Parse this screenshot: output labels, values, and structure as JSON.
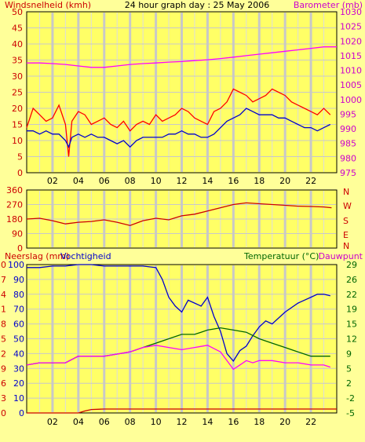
{
  "chart_data": [
    {
      "type": "line",
      "title": "24 hour graph day : 25 May 2006",
      "y_left_label": "Windsnelheid (kmh)",
      "y_right_label": "Barometer (mb)",
      "x_ticks": [
        "02",
        "04",
        "06",
        "08",
        "10",
        "12",
        "14",
        "16",
        "18",
        "20",
        "22"
      ],
      "x_range": [
        0,
        24
      ],
      "y_left_range": [
        0,
        50
      ],
      "y_left_ticks": [
        "0",
        "5",
        "10",
        "15",
        "20",
        "25",
        "30",
        "35",
        "40",
        "45",
        "50"
      ],
      "y_right_range": [
        975,
        1030
      ],
      "y_right_ticks": [
        "975",
        "980",
        "985",
        "990",
        "995",
        "1000",
        "1005",
        "1010",
        "1015",
        "1020",
        "1025",
        "1030"
      ],
      "grid": true,
      "series": [
        {
          "axis": "left",
          "color": "#ff0000",
          "x": [
            0,
            0.5,
            1,
            1.5,
            2,
            2.5,
            3,
            3.25,
            3.5,
            4,
            4.5,
            5,
            5.5,
            6,
            6.5,
            7,
            7.5,
            8,
            8.5,
            9,
            9.5,
            10,
            10.5,
            11,
            11.5,
            12,
            12.5,
            13,
            13.5,
            14,
            14.5,
            15,
            15.5,
            16,
            16.5,
            17,
            17.5,
            18,
            18.5,
            19,
            19.5,
            20,
            20.5,
            21,
            21.5,
            22,
            22.5,
            23,
            23.5
          ],
          "y": [
            14,
            20,
            18,
            16,
            17,
            21,
            15,
            5,
            16,
            19,
            18,
            15,
            16,
            17,
            15,
            14,
            16,
            13,
            15,
            16,
            15,
            18,
            16,
            17,
            18,
            20,
            19,
            17,
            16,
            15,
            19,
            20,
            22,
            26,
            25,
            24,
            22,
            23,
            24,
            26,
            25,
            24,
            22,
            21,
            20,
            19,
            18,
            20,
            18
          ]
        },
        {
          "axis": "left",
          "color": "#0000cc",
          "x": [
            0,
            0.5,
            1,
            1.5,
            2,
            2.5,
            3,
            3.25,
            3.5,
            4,
            4.5,
            5,
            5.5,
            6,
            6.5,
            7,
            7.5,
            8,
            8.5,
            9,
            9.5,
            10,
            10.5,
            11,
            11.5,
            12,
            12.5,
            13,
            13.5,
            14,
            14.5,
            15,
            15.5,
            16,
            16.5,
            17,
            17.5,
            18,
            18.5,
            19,
            19.5,
            20,
            20.5,
            21,
            21.5,
            22,
            22.5,
            23,
            23.5
          ],
          "y": [
            13,
            13,
            12,
            13,
            12,
            12,
            10,
            8,
            11,
            12,
            11,
            12,
            11,
            11,
            10,
            9,
            10,
            8,
            10,
            11,
            11,
            11,
            11,
            12,
            12,
            13,
            12,
            12,
            11,
            11,
            12,
            14,
            16,
            17,
            18,
            20,
            19,
            18,
            18,
            18,
            17,
            17,
            16,
            15,
            14,
            14,
            13,
            14,
            15
          ]
        },
        {
          "axis": "right",
          "color": "#ff00ff",
          "x": [
            0,
            1,
            2,
            3,
            4,
            5,
            6,
            7,
            8,
            9,
            10,
            11,
            12,
            13,
            14,
            15,
            16,
            17,
            18,
            19,
            20,
            21,
            22,
            23,
            24
          ],
          "y": [
            1012.5,
            1012.5,
            1012.3,
            1012,
            1011.5,
            1011,
            1011,
            1011.5,
            1012,
            1012.3,
            1012.5,
            1012.8,
            1013,
            1013.3,
            1013.6,
            1014,
            1014.5,
            1015,
            1015.5,
            1016,
            1016.5,
            1017,
            1017.5,
            1018,
            1018
          ]
        }
      ]
    },
    {
      "type": "line",
      "y_right_label": [
        "N",
        "W",
        "S",
        "E",
        "N"
      ],
      "x_range": [
        0,
        24
      ],
      "y_left_range": [
        0,
        360
      ],
      "y_left_ticks": [
        "0",
        "90",
        "180",
        "270",
        "360"
      ],
      "grid": true,
      "series": [
        {
          "color": "#cc0000",
          "x": [
            0,
            1,
            2,
            3,
            4,
            5,
            6,
            7,
            8,
            9,
            10,
            11,
            12,
            13,
            14,
            15,
            16,
            17,
            18,
            19,
            20,
            21,
            22,
            23,
            23.6
          ],
          "y": [
            180,
            185,
            170,
            150,
            160,
            165,
            175,
            160,
            140,
            170,
            185,
            175,
            200,
            210,
            230,
            250,
            270,
            280,
            275,
            270,
            265,
            260,
            258,
            255,
            250
          ]
        }
      ]
    },
    {
      "type": "line",
      "y_left_label_1": "Neerslag (mm)",
      "y_left_label_2": "Vochtigheid",
      "y_right_label_1": "Temperatuur (°C)",
      "y_right_label_2": "Dauwpunt",
      "x_ticks": [
        "02",
        "04",
        "06",
        "08",
        "10",
        "12",
        "14",
        "16",
        "18",
        "20",
        "22"
      ],
      "x_range": [
        0,
        24
      ],
      "y_left_outer_ticks": [
        "0",
        "3",
        "6",
        "9",
        "12",
        "15",
        "18",
        "21",
        "24",
        "27",
        "30"
      ],
      "y_left_outer_range": [
        0,
        30
      ],
      "y_left_inner_ticks": [
        "0",
        "10",
        "20",
        "30",
        "40",
        "50",
        "60",
        "70",
        "80",
        "90",
        "100"
      ],
      "y_left_inner_range": [
        0,
        100
      ],
      "y_right_ticks": [
        "-5",
        "-2",
        "2",
        "5",
        "9",
        "12",
        "15",
        "19",
        "22",
        "26",
        "29"
      ],
      "y_right_range": [
        -5,
        29
      ],
      "grid": true,
      "series": [
        {
          "name": "Vochtigheid",
          "axis": "inner",
          "color": "#0000cc",
          "x": [
            0,
            1,
            2,
            3,
            4,
            5,
            6,
            7,
            8,
            9,
            10,
            10.5,
            11,
            11.5,
            12,
            12.5,
            13,
            13.5,
            14,
            14.5,
            15,
            15.5,
            16,
            16.5,
            17,
            17.5,
            18,
            18.5,
            19,
            20,
            21,
            22,
            22.5,
            23,
            23.5
          ],
          "y": [
            98,
            98,
            99,
            99,
            100,
            100,
            99,
            99,
            99,
            99,
            98,
            90,
            78,
            72,
            68,
            76,
            74,
            72,
            78,
            65,
            55,
            40,
            35,
            42,
            45,
            52,
            58,
            62,
            60,
            68,
            74,
            78,
            80,
            80,
            79
          ]
        },
        {
          "name": "Temperatuur",
          "axis": "right",
          "color": "#006600",
          "x": [
            0,
            1,
            2,
            3,
            4,
            5,
            6,
            7,
            8,
            9,
            10,
            11,
            12,
            13,
            14,
            15,
            16,
            17,
            18,
            19,
            20,
            21,
            22,
            23,
            23.5
          ],
          "y": [
            6,
            6.5,
            6.5,
            6.5,
            8,
            8,
            8,
            8.5,
            9,
            10,
            11,
            12,
            13,
            13,
            14,
            14.5,
            14,
            13.5,
            12,
            11,
            10,
            9,
            8,
            8,
            8
          ]
        },
        {
          "name": "Dauwpunt",
          "axis": "right",
          "color": "#ff00ff",
          "x": [
            0,
            1,
            2,
            3,
            4,
            5,
            6,
            7,
            8,
            9,
            10,
            11,
            12,
            13,
            14,
            15,
            15.5,
            16,
            16.5,
            17,
            17.5,
            18,
            19,
            20,
            21,
            22,
            23,
            23.5
          ],
          "y": [
            6,
            6.5,
            6.5,
            6.5,
            8,
            8,
            8,
            8.5,
            9,
            10,
            10.5,
            10,
            9.5,
            10,
            10.5,
            9,
            7,
            5,
            6,
            7,
            6.5,
            7,
            7,
            6.5,
            6.5,
            6,
            6,
            5.5
          ]
        },
        {
          "name": "Neerslag",
          "axis": "outer",
          "color": "#cc0000",
          "x": [
            0,
            4,
            4.5,
            5,
            6,
            24
          ],
          "y": [
            0,
            0,
            0.4,
            0.7,
            0.8,
            0.8
          ]
        }
      ]
    }
  ]
}
